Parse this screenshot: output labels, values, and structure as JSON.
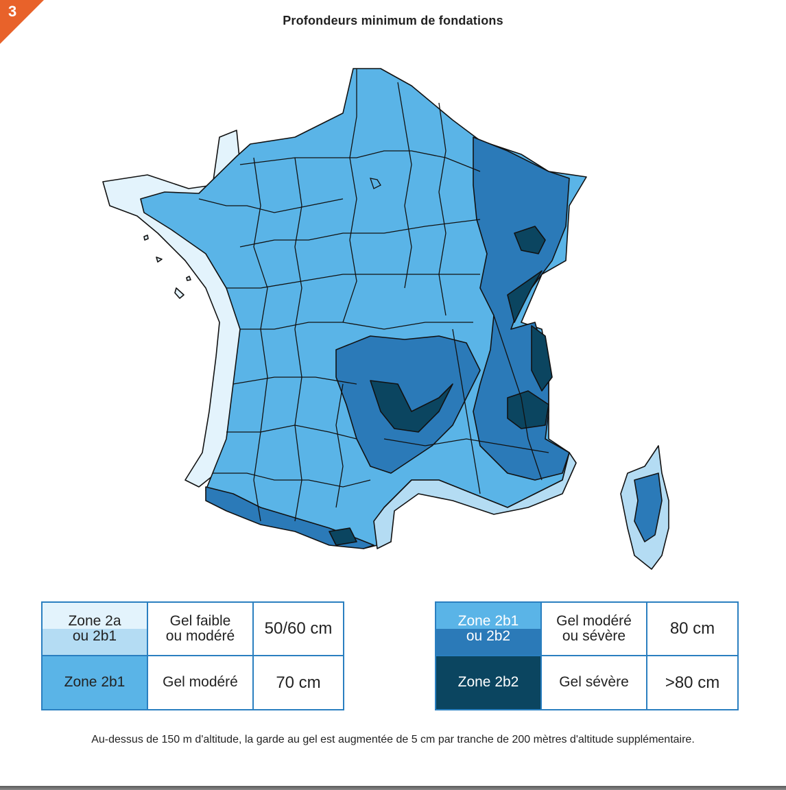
{
  "badge": {
    "number": "3",
    "color": "#e8622a"
  },
  "title": "Profondeurs minimum de fondations",
  "colors": {
    "zone_2a": "#e3f3fc",
    "zone_2a_2b1": "#b4dcf3",
    "zone_2b1": "#5ab4e7",
    "zone_2b1_2b2": "#2b7ab8",
    "zone_2b2": "#0b4560",
    "border": "#2a7fc0"
  },
  "legend_left": [
    {
      "zone_line1": "Zone 2a",
      "zone_line2": "ou 2b1",
      "frost_line1": "Gel faible",
      "frost_line2": "ou modéré",
      "depth": "50/60 cm"
    },
    {
      "zone": "Zone 2b1",
      "frost": "Gel modéré",
      "depth": "70 cm"
    }
  ],
  "legend_right": [
    {
      "zone_line1": "Zone 2b1",
      "zone_line2": "ou 2b2",
      "frost_line1": "Gel modéré",
      "frost_line2": "ou sévère",
      "depth": "80 cm"
    },
    {
      "zone": "Zone 2b2",
      "frost": "Gel sévère",
      "depth": ">80 cm"
    }
  ],
  "footnote": "Au-dessus de 150 m d'altitude, la garde au gel est augmentée  de 5 cm par tranche de 200 mètres d'altitude supplémentaire."
}
